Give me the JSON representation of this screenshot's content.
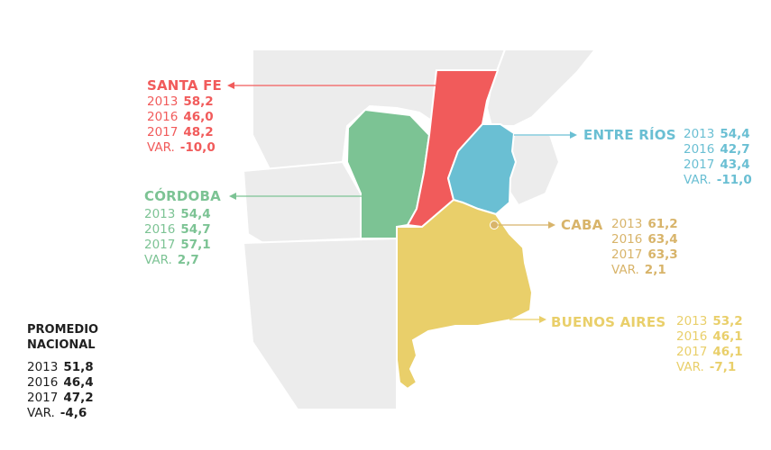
{
  "provinces": {
    "santa_fe": {
      "name": "SANTA FE",
      "color": "#f15b5b",
      "rows": [
        {
          "label": "2013",
          "value": "58,2"
        },
        {
          "label": "2016",
          "value": "46,0"
        },
        {
          "label": "2017",
          "value": "48,2"
        },
        {
          "label": "VAR.",
          "value": "-10,0"
        }
      ]
    },
    "cordoba": {
      "name": "CÓRDOBA",
      "color": "#7cc394",
      "rows": [
        {
          "label": "2013",
          "value": "54,4"
        },
        {
          "label": "2016",
          "value": "54,7"
        },
        {
          "label": "2017",
          "value": "57,1"
        },
        {
          "label": "VAR.",
          "value": "2,7"
        }
      ]
    },
    "entre_rios": {
      "name": "ENTRE RÍOS",
      "color": "#6abfd3",
      "rows": [
        {
          "label": "2013",
          "value": "54,4"
        },
        {
          "label": "2016",
          "value": "42,7"
        },
        {
          "label": "2017",
          "value": "43,4"
        },
        {
          "label": "VAR.",
          "value": "-11,0"
        }
      ]
    },
    "caba": {
      "name": "CABA",
      "color": "#d8b46a",
      "rows": [
        {
          "label": "2013",
          "value": "61,2"
        },
        {
          "label": "2016",
          "value": "63,4"
        },
        {
          "label": "2017",
          "value": "63,3"
        },
        {
          "label": "VAR.",
          "value": "2,1"
        }
      ]
    },
    "buenos_aires": {
      "name": "BUENOS AIRES",
      "color": "#e9cf6a",
      "rows": [
        {
          "label": "2013",
          "value": "53,2"
        },
        {
          "label": "2016",
          "value": "46,1"
        },
        {
          "label": "2017",
          "value": "46,1"
        },
        {
          "label": "VAR.",
          "value": "-7,1"
        }
      ]
    }
  },
  "national": {
    "title": "PROMEDIO NACIONAL",
    "rows": [
      {
        "label": "2013",
        "value": "51,8"
      },
      {
        "label": "2016",
        "value": "46,4"
      },
      {
        "label": "2017",
        "value": "47,2"
      },
      {
        "label": "VAR.",
        "value": "-4,6"
      }
    ]
  },
  "background_color": "#ececec",
  "border_color": "#ffffff"
}
